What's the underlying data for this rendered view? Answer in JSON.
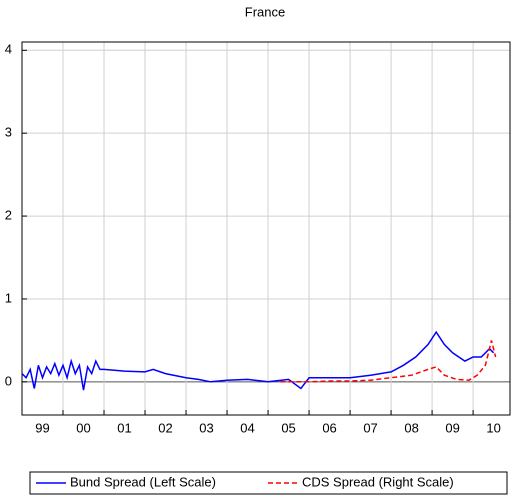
{
  "chart_data": {
    "type": "line",
    "title": "France",
    "xlim": [
      1999,
      2010.9
    ],
    "xticks": [
      {
        "value": 1999,
        "label": "99"
      },
      {
        "value": 2000,
        "label": "00"
      },
      {
        "value": 2001,
        "label": "01"
      },
      {
        "value": 2002,
        "label": "02"
      },
      {
        "value": 2003,
        "label": "03"
      },
      {
        "value": 2004,
        "label": "04"
      },
      {
        "value": 2005,
        "label": "05"
      },
      {
        "value": 2006,
        "label": "06"
      },
      {
        "value": 2007,
        "label": "07"
      },
      {
        "value": 2008,
        "label": "08"
      },
      {
        "value": 2009,
        "label": "09"
      },
      {
        "value": 2010,
        "label": "10"
      }
    ],
    "ylim": [
      -0.4,
      4.1
    ],
    "yticks": [
      0,
      1,
      2,
      3,
      4
    ],
    "grid": true,
    "legend": "bottom",
    "series": [
      {
        "name": "Bund Spread (Left Scale)",
        "color": "#0000ff",
        "dash": false,
        "x": [
          1999.0,
          1999.1,
          1999.2,
          1999.3,
          1999.4,
          1999.5,
          1999.6,
          1999.7,
          1999.8,
          1999.9,
          2000.0,
          2000.1,
          2000.2,
          2000.3,
          2000.4,
          2000.5,
          2000.6,
          2000.7,
          2000.8,
          2000.9,
          2001.0,
          2001.5,
          2002.0,
          2002.2,
          2002.5,
          2003.0,
          2003.3,
          2003.6,
          2004.0,
          2004.5,
          2005.0,
          2005.5,
          2005.8,
          2006.0,
          2006.5,
          2007.0,
          2007.5,
          2008.0,
          2008.3,
          2008.6,
          2008.9,
          2009.1,
          2009.3,
          2009.5,
          2009.8,
          2010.0,
          2010.2,
          2010.4,
          2010.5
        ],
        "values": [
          0.1,
          0.05,
          0.15,
          -0.08,
          0.2,
          0.05,
          0.18,
          0.1,
          0.22,
          0.08,
          0.2,
          0.05,
          0.25,
          0.1,
          0.2,
          -0.1,
          0.18,
          0.1,
          0.25,
          0.15,
          0.15,
          0.13,
          0.12,
          0.15,
          0.1,
          0.05,
          0.03,
          0.0,
          0.02,
          0.03,
          0.0,
          0.03,
          -0.08,
          0.05,
          0.05,
          0.05,
          0.08,
          0.12,
          0.2,
          0.3,
          0.45,
          0.6,
          0.45,
          0.35,
          0.25,
          0.3,
          0.3,
          0.4,
          0.35
        ]
      },
      {
        "name": "CDS Spread (Right Scale)",
        "color": "#ff0000",
        "dash": true,
        "x": [
          2005.3,
          2006.0,
          2006.5,
          2007.0,
          2007.5,
          2008.0,
          2008.5,
          2008.9,
          2009.1,
          2009.3,
          2009.6,
          2009.9,
          2010.1,
          2010.3,
          2010.45,
          2010.55
        ],
        "values": [
          0.0,
          0.0,
          0.01,
          0.01,
          0.02,
          0.05,
          0.08,
          0.15,
          0.18,
          0.08,
          0.03,
          0.02,
          0.08,
          0.2,
          0.5,
          0.3
        ]
      }
    ]
  }
}
